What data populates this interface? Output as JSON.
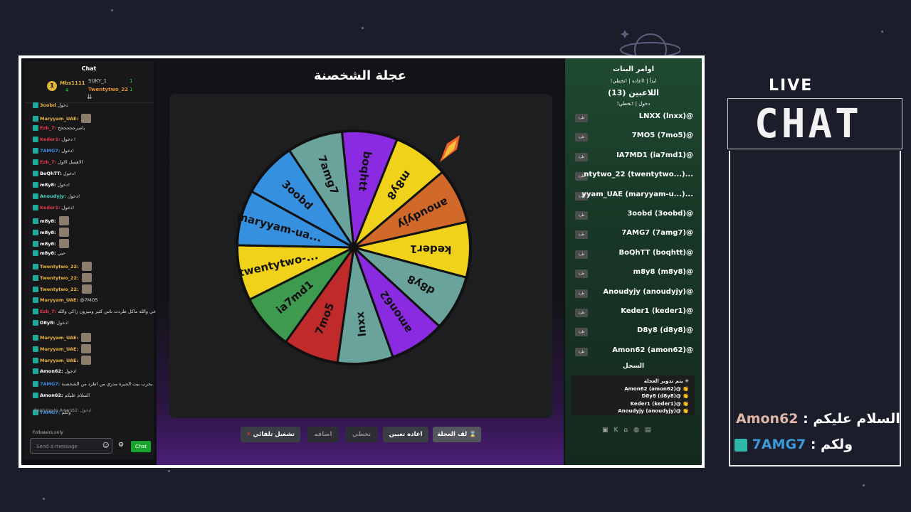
{
  "chat": {
    "header": "Chat",
    "leaderboard": {
      "rank": "1",
      "first": {
        "name": "Mbs1111",
        "count": "4"
      },
      "second": {
        "name": "SUKY_1",
        "count": "1"
      },
      "third": {
        "name": "Twentytwo_22",
        "count": "1"
      }
    },
    "messages": [
      {
        "user": "3oobd",
        "text": "دخول"
      },
      {
        "user": "Maryyam_UAE:",
        "text": ""
      },
      {
        "user": "Ezb_7:",
        "text": "ياصرحححححح"
      },
      {
        "user": "Keder1:",
        "text": "دخول !"
      },
      {
        "user": "7AMG7:",
        "text": "دخول!"
      },
      {
        "user": "Ezb_7:",
        "text": "الاهسل الاول"
      },
      {
        "user": "BoQhTT:",
        "text": "دخول!"
      },
      {
        "user": "m8y8:",
        "text": "دخول!"
      },
      {
        "user": "Anoudyjy:",
        "text": "دخول!"
      },
      {
        "user": "Keder1:",
        "text": "دخول!"
      },
      {
        "user": "m8y8:",
        "text": ""
      },
      {
        "user": "m8y8:",
        "text": ""
      },
      {
        "user": "m8y8:",
        "text": ""
      },
      {
        "user": "m8y8:",
        "text": "حبي"
      },
      {
        "user": "Twentytwo_22:",
        "text": ""
      },
      {
        "user": "Twentytwo_22:",
        "text": ""
      },
      {
        "user": "Twentytwo_22:",
        "text": ""
      },
      {
        "user": "Maryyam_UAE:",
        "text": "@7MO5"
      },
      {
        "user": "Ezb_7:",
        "text": "عي والله ماكل طردت ناس كثير وميرون زاكي والله"
      },
      {
        "user": "D8y8:",
        "text": "دخول!"
      },
      {
        "user": "Maryyam_UAE:",
        "text": ""
      },
      {
        "user": "Maryyam_UAE:",
        "text": ""
      },
      {
        "user": "Maryyam_UAE:",
        "text": ""
      },
      {
        "user": "Amon62:",
        "text": "دخول!"
      },
      {
        "user": "7AMG7:",
        "text": "يخرب بيت الحيرة مدري من اطرد من الشخصنة"
      },
      {
        "user": "Amon62:",
        "text": "السلام عليكم"
      },
      {
        "user": "7AMG7:",
        "text": "ولكم"
      }
    ],
    "replying": "Replying to Amon62: دخول!",
    "followers_only": "Followers only",
    "input_placeholder": "Send a message",
    "send_label": "Chat"
  },
  "game": {
    "title": "عجلة الشخصنة",
    "wheel_segments": [
      {
        "label": "boqhtt",
        "color": "#8a2be2"
      },
      {
        "label": "m8y8",
        "color": "#f0d21a"
      },
      {
        "label": "anoudyjy",
        "color": "#d1692b"
      },
      {
        "label": "keder1",
        "color": "#f0d21a"
      },
      {
        "label": "d8y8",
        "color": "#6aa39b"
      },
      {
        "label": "amon62",
        "color": "#8a2be2"
      },
      {
        "label": "lnxx",
        "color": "#6aa39b"
      },
      {
        "label": "7mo5",
        "color": "#c02a2a"
      },
      {
        "label": "ia7md1",
        "color": "#3e9a4e"
      },
      {
        "label": "twentytwo-...",
        "color": "#f0d21a"
      },
      {
        "label": "maryyam-ua...",
        "color": "#3690e0"
      },
      {
        "label": "3oobd",
        "color": "#3690e0"
      },
      {
        "label": "7amg7",
        "color": "#6aa39b"
      }
    ],
    "buttons": {
      "auto": "تشغيل تلقائي",
      "add": "اضافه",
      "skip": "تخطي",
      "reassign": "اعاده تعيين",
      "spin": "لف العجلة"
    }
  },
  "panel": {
    "commands_title": "اوامر البنات",
    "commands": "!ابدأ | !اعاده | !تخطي",
    "players_title": "اللاعبين (13)",
    "players_commands": "!دخول | !تخطي",
    "kick_label": "طرد",
    "players": [
      "LNXX (lnxx)@",
      "7MO5 (7mo5)@",
      "IA7MD1 (ia7md1)@",
      "ntytwo_22 (twentytwo...)...",
      "yyam_UAE (maryyam-u...)...",
      "3oobd (3oobd)@",
      "7AMG7 (7amg7)@",
      "BoQhTT (boqhtt)@",
      "m8y8 (m8y8)@",
      "Anoudyjy (anoudyjy)@",
      "Keder1 (keder1)@",
      "D8y8 (d8y8)@",
      "Amon62 (amon62)@"
    ],
    "log_title": "السجل",
    "log": [
      "يتم تدوير العجلة",
      "Amon62 (amon62)@",
      "D8y8 (d8y8)@",
      "Keder1 (keder1)@",
      "Anoudyjy (anoudyjy)@"
    ]
  },
  "overlay": {
    "live": "LIVE",
    "chat": "CHAT",
    "messages": [
      {
        "user": "Amon62",
        "text": "السلام عليكم"
      },
      {
        "user": "7AMG7",
        "text": "ولكم"
      }
    ]
  },
  "colors": {
    "accent_green": "#18a32d",
    "purple": "#4a1f77"
  }
}
